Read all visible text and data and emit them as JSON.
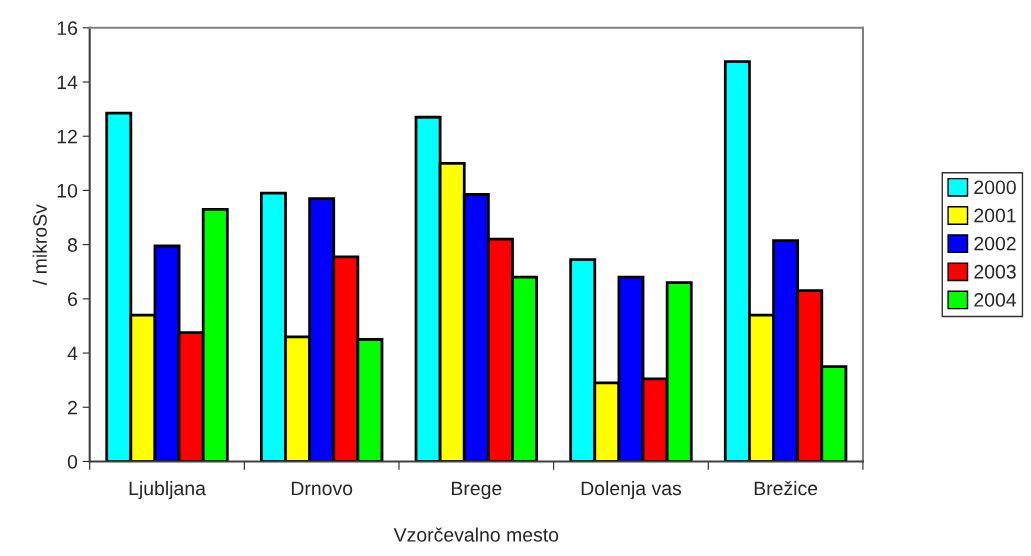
{
  "chart_data": {
    "type": "bar",
    "xlabel": "Vzorčevalno mesto",
    "ylabel": "/ mikroSv",
    "categories": [
      "Ljubljana",
      "Drnovo",
      "Brege",
      "Dolenja vas",
      "Brežice"
    ],
    "series": [
      {
        "name": "2000",
        "color": "#00ffff",
        "values": [
          12.85,
          9.9,
          12.7,
          7.45,
          14.75
        ]
      },
      {
        "name": "2001",
        "color": "#ffff00",
        "values": [
          5.4,
          4.6,
          11.0,
          2.9,
          5.4
        ]
      },
      {
        "name": "2002",
        "color": "#0000ff",
        "values": [
          7.95,
          9.7,
          9.85,
          6.8,
          8.15
        ]
      },
      {
        "name": "2003",
        "color": "#ff0000",
        "values": [
          4.75,
          7.55,
          8.2,
          3.05,
          6.3
        ]
      },
      {
        "name": "2004",
        "color": "#00ff00",
        "values": [
          9.3,
          4.5,
          6.8,
          6.6,
          3.5
        ]
      }
    ],
    "ylim": [
      0,
      16
    ],
    "yticks": [
      0,
      2,
      4,
      6,
      8,
      10,
      12,
      14,
      16
    ],
    "grid": false,
    "legend": "right"
  }
}
